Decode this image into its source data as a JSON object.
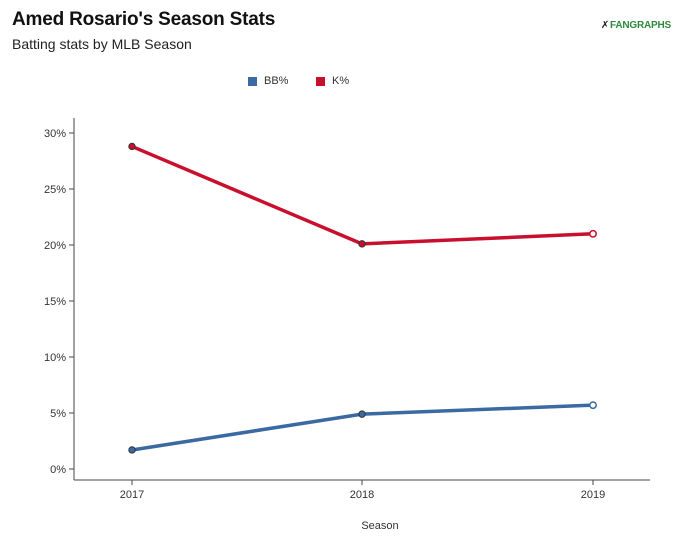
{
  "header": {
    "title": "Amed Rosario's Season Stats",
    "subtitle": "Batting stats by MLB Season",
    "brand_mark": "✗",
    "brand_fan": "FAN",
    "brand_graphs": "GRAPHS"
  },
  "colors": {
    "bb": "#3a6aa1",
    "k": "#c8102e",
    "axis": "#444444"
  },
  "chart_data": {
    "type": "line",
    "title": "Amed Rosario's Season Stats",
    "subtitle": "Batting stats by MLB Season",
    "xlabel": "Season",
    "ylabel": "",
    "categories": [
      "2017",
      "2018",
      "2019"
    ],
    "ylim": [
      0,
      30
    ],
    "yticks": [
      0,
      5,
      10,
      15,
      20,
      25,
      30
    ],
    "ytick_labels": [
      "0%",
      "5%",
      "10%",
      "15%",
      "20%",
      "25%",
      "30%"
    ],
    "legend_position": "top-center",
    "grid": false,
    "series": [
      {
        "name": "BB%",
        "values": [
          1.7,
          4.9,
          5.7
        ],
        "color": "#3a6aa1",
        "last_hollow": true
      },
      {
        "name": "K%",
        "values": [
          28.8,
          20.1,
          21.0
        ],
        "color": "#c8102e",
        "last_hollow": true
      }
    ]
  }
}
